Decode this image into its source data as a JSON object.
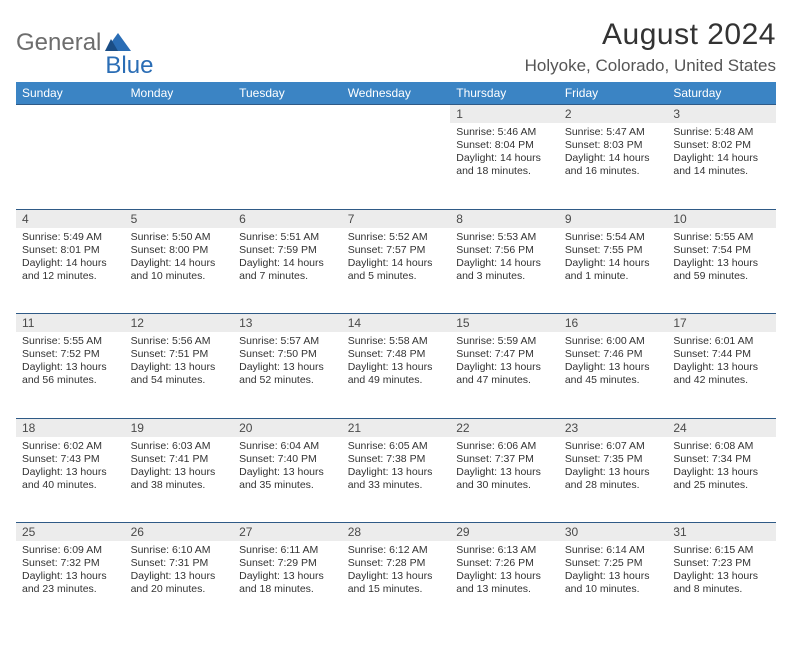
{
  "brand": {
    "text1": "General",
    "text2": "Blue"
  },
  "title": "August 2024",
  "location": "Holyoke, Colorado, United States",
  "colors": {
    "header_bg": "#3b84c4",
    "header_text": "#ffffff",
    "row_divider": "#2f5a86",
    "daynum_bg": "#ececec",
    "text": "#333333",
    "brand_gray": "#6d6d6d",
    "brand_blue": "#2a6db5"
  },
  "typography": {
    "title_fontsize": 30,
    "location_fontsize": 17,
    "dayheader_fontsize": 12,
    "daynum_fontsize": 12,
    "cell_fontsize": 10.5
  },
  "day_headers": [
    "Sunday",
    "Monday",
    "Tuesday",
    "Wednesday",
    "Thursday",
    "Friday",
    "Saturday"
  ],
  "weeks": [
    [
      null,
      null,
      null,
      null,
      {
        "n": "1",
        "sr": "5:46 AM",
        "ss": "8:04 PM",
        "dl": "14 hours and 18 minutes."
      },
      {
        "n": "2",
        "sr": "5:47 AM",
        "ss": "8:03 PM",
        "dl": "14 hours and 16 minutes."
      },
      {
        "n": "3",
        "sr": "5:48 AM",
        "ss": "8:02 PM",
        "dl": "14 hours and 14 minutes."
      }
    ],
    [
      {
        "n": "4",
        "sr": "5:49 AM",
        "ss": "8:01 PM",
        "dl": "14 hours and 12 minutes."
      },
      {
        "n": "5",
        "sr": "5:50 AM",
        "ss": "8:00 PM",
        "dl": "14 hours and 10 minutes."
      },
      {
        "n": "6",
        "sr": "5:51 AM",
        "ss": "7:59 PM",
        "dl": "14 hours and 7 minutes."
      },
      {
        "n": "7",
        "sr": "5:52 AM",
        "ss": "7:57 PM",
        "dl": "14 hours and 5 minutes."
      },
      {
        "n": "8",
        "sr": "5:53 AM",
        "ss": "7:56 PM",
        "dl": "14 hours and 3 minutes."
      },
      {
        "n": "9",
        "sr": "5:54 AM",
        "ss": "7:55 PM",
        "dl": "14 hours and 1 minute."
      },
      {
        "n": "10",
        "sr": "5:55 AM",
        "ss": "7:54 PM",
        "dl": "13 hours and 59 minutes."
      }
    ],
    [
      {
        "n": "11",
        "sr": "5:55 AM",
        "ss": "7:52 PM",
        "dl": "13 hours and 56 minutes."
      },
      {
        "n": "12",
        "sr": "5:56 AM",
        "ss": "7:51 PM",
        "dl": "13 hours and 54 minutes."
      },
      {
        "n": "13",
        "sr": "5:57 AM",
        "ss": "7:50 PM",
        "dl": "13 hours and 52 minutes."
      },
      {
        "n": "14",
        "sr": "5:58 AM",
        "ss": "7:48 PM",
        "dl": "13 hours and 49 minutes."
      },
      {
        "n": "15",
        "sr": "5:59 AM",
        "ss": "7:47 PM",
        "dl": "13 hours and 47 minutes."
      },
      {
        "n": "16",
        "sr": "6:00 AM",
        "ss": "7:46 PM",
        "dl": "13 hours and 45 minutes."
      },
      {
        "n": "17",
        "sr": "6:01 AM",
        "ss": "7:44 PM",
        "dl": "13 hours and 42 minutes."
      }
    ],
    [
      {
        "n": "18",
        "sr": "6:02 AM",
        "ss": "7:43 PM",
        "dl": "13 hours and 40 minutes."
      },
      {
        "n": "19",
        "sr": "6:03 AM",
        "ss": "7:41 PM",
        "dl": "13 hours and 38 minutes."
      },
      {
        "n": "20",
        "sr": "6:04 AM",
        "ss": "7:40 PM",
        "dl": "13 hours and 35 minutes."
      },
      {
        "n": "21",
        "sr": "6:05 AM",
        "ss": "7:38 PM",
        "dl": "13 hours and 33 minutes."
      },
      {
        "n": "22",
        "sr": "6:06 AM",
        "ss": "7:37 PM",
        "dl": "13 hours and 30 minutes."
      },
      {
        "n": "23",
        "sr": "6:07 AM",
        "ss": "7:35 PM",
        "dl": "13 hours and 28 minutes."
      },
      {
        "n": "24",
        "sr": "6:08 AM",
        "ss": "7:34 PM",
        "dl": "13 hours and 25 minutes."
      }
    ],
    [
      {
        "n": "25",
        "sr": "6:09 AM",
        "ss": "7:32 PM",
        "dl": "13 hours and 23 minutes."
      },
      {
        "n": "26",
        "sr": "6:10 AM",
        "ss": "7:31 PM",
        "dl": "13 hours and 20 minutes."
      },
      {
        "n": "27",
        "sr": "6:11 AM",
        "ss": "7:29 PM",
        "dl": "13 hours and 18 minutes."
      },
      {
        "n": "28",
        "sr": "6:12 AM",
        "ss": "7:28 PM",
        "dl": "13 hours and 15 minutes."
      },
      {
        "n": "29",
        "sr": "6:13 AM",
        "ss": "7:26 PM",
        "dl": "13 hours and 13 minutes."
      },
      {
        "n": "30",
        "sr": "6:14 AM",
        "ss": "7:25 PM",
        "dl": "13 hours and 10 minutes."
      },
      {
        "n": "31",
        "sr": "6:15 AM",
        "ss": "7:23 PM",
        "dl": "13 hours and 8 minutes."
      }
    ]
  ],
  "labels": {
    "sunrise": "Sunrise: ",
    "sunset": "Sunset: ",
    "daylight": "Daylight: "
  }
}
